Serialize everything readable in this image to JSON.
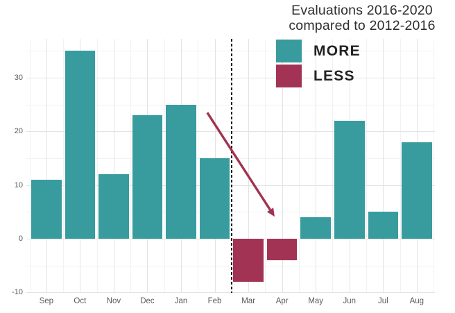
{
  "title": {
    "line1": "Evaluations 2016-2020",
    "line2": "compared to 2012-2016"
  },
  "legend": {
    "items": [
      {
        "label": "MORE",
        "color": "#389b9e"
      },
      {
        "label": "LESS",
        "color": "#a23354"
      }
    ]
  },
  "chart_data": {
    "type": "bar",
    "title": "Evaluations 2016-2020 compared to 2012-2016",
    "categories": [
      "Sep",
      "Oct",
      "Nov",
      "Dec",
      "Jan",
      "Feb",
      "Mar",
      "Apr",
      "May",
      "Jun",
      "Jul",
      "Aug"
    ],
    "values": [
      11,
      35,
      12,
      23,
      25,
      15,
      -8,
      -4,
      4,
      22,
      5,
      18
    ],
    "xlabel": "",
    "ylabel": "",
    "ylim": [
      -10.1,
      37.3
    ],
    "yticks_major": [
      -10,
      0,
      10,
      20,
      30
    ],
    "yticks_minor": [
      -5,
      5,
      15,
      25,
      35
    ],
    "grid": "on",
    "legend_position": "top-right",
    "bar_colors": {
      "positive": "#389b9e",
      "negative": "#a23354"
    },
    "annotations": [
      {
        "type": "dashed-vline",
        "between": [
          "Feb",
          "Mar"
        ],
        "color": "#1b1b1b"
      },
      {
        "type": "arrow",
        "from": {
          "x_index": 4.78,
          "value": 23.5
        },
        "to": {
          "x_index": 6.78,
          "value": 4.1
        },
        "color": "#a23350"
      }
    ]
  }
}
